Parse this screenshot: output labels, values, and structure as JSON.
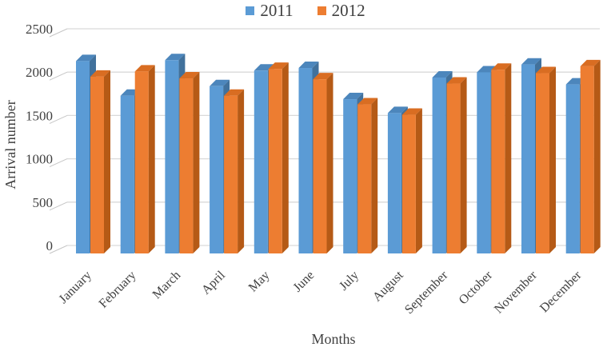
{
  "page": {
    "background": "#ffffff",
    "text_color": "#404040",
    "gridline_color": "#d9d9d9",
    "axis_tick_color": "#c6c6c6"
  },
  "legend": {
    "items": [
      {
        "label": "2011",
        "color": "#5B9BD5"
      },
      {
        "label": "2012",
        "color": "#ED7D31"
      }
    ]
  },
  "chart_data": {
    "type": "bar",
    "variant": "3d-clustered-column",
    "title": "",
    "xlabel": "Months",
    "ylabel": "Arrival number",
    "ylim": [
      0,
      2500
    ],
    "ytick_interval": 500,
    "yticks": [
      0,
      500,
      1000,
      1500,
      2000,
      2500
    ],
    "grid": true,
    "legend_position": "top-center",
    "categories": [
      "January",
      "February",
      "March",
      "April",
      "May",
      "June",
      "July",
      "August",
      "September",
      "October",
      "November",
      "December"
    ],
    "series": [
      {
        "name": "2011",
        "color": "#5B9BD5",
        "top_color": "#4C86BC",
        "side_color": "#41719C",
        "values": [
          2220,
          1820,
          2230,
          1930,
          2110,
          2140,
          1780,
          1620,
          2030,
          2090,
          2180,
          1950
        ]
      },
      {
        "name": "2012",
        "color": "#ED7D31",
        "top_color": "#D96D22",
        "side_color": "#B55A16",
        "values": [
          2040,
          2100,
          2020,
          1820,
          2130,
          2010,
          1720,
          1600,
          1960,
          2120,
          2080,
          2160
        ]
      }
    ]
  }
}
